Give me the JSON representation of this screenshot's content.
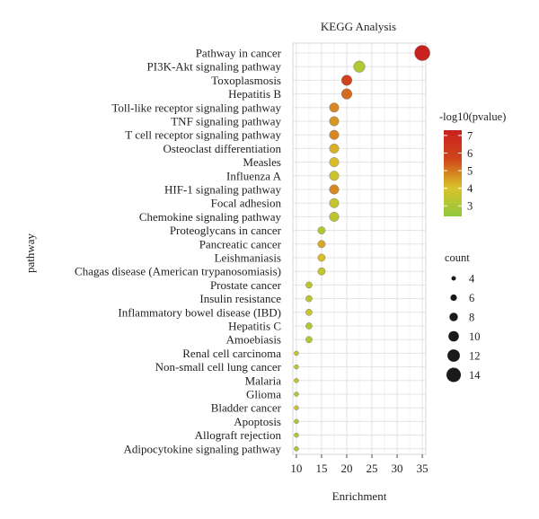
{
  "chart_data": {
    "type": "scatter",
    "title": "KEGG Analysis",
    "xlabel": "Enrichment",
    "ylabel": "pathway",
    "xlim": [
      9.3,
      35.7
    ],
    "xticks": [
      10,
      15,
      20,
      25,
      30,
      35
    ],
    "grid": true,
    "legend_position": "right",
    "color_legend": {
      "title": "-log10(pvalue)",
      "ticks": [
        3,
        4,
        5,
        6,
        7
      ],
      "range": [
        2.4,
        7.3
      ],
      "colors": [
        "#8fc83c",
        "#d9c32a",
        "#d0461b",
        "#c8201f"
      ]
    },
    "size_legend": {
      "title": "count",
      "values": [
        4,
        6,
        8,
        10,
        12,
        14
      ]
    },
    "points": [
      {
        "pathway": "Pathway in cancer",
        "enrichment": 35,
        "count": 15,
        "neglog10p": 7.2
      },
      {
        "pathway": "PI3K-Akt signaling pathway",
        "enrichment": 22.5,
        "count": 11,
        "neglog10p": 3.2
      },
      {
        "pathway": "Toxoplasmosis",
        "enrichment": 20,
        "count": 10,
        "neglog10p": 5.8
      },
      {
        "pathway": "Hepatitis B",
        "enrichment": 20,
        "count": 10,
        "neglog10p": 5.2
      },
      {
        "pathway": "Toll-like receptor signaling pathway",
        "enrichment": 17.5,
        "count": 9,
        "neglog10p": 4.8
      },
      {
        "pathway": "TNF signaling pathway",
        "enrichment": 17.5,
        "count": 9,
        "neglog10p": 4.6
      },
      {
        "pathway": "T cell receptor signaling pathway",
        "enrichment": 17.5,
        "count": 9,
        "neglog10p": 4.8
      },
      {
        "pathway": "Osteoclast differentiation",
        "enrichment": 17.5,
        "count": 9,
        "neglog10p": 4.3
      },
      {
        "pathway": "Measles",
        "enrichment": 17.5,
        "count": 9,
        "neglog10p": 4.1
      },
      {
        "pathway": "Influenza A",
        "enrichment": 17.5,
        "count": 9,
        "neglog10p": 3.7
      },
      {
        "pathway": "HIF-1 signaling pathway",
        "enrichment": 17.5,
        "count": 9,
        "neglog10p": 4.8
      },
      {
        "pathway": "Focal adhesion",
        "enrichment": 17.5,
        "count": 9,
        "neglog10p": 3.6
      },
      {
        "pathway": "Chemokine signaling pathway",
        "enrichment": 17.5,
        "count": 9,
        "neglog10p": 3.4
      },
      {
        "pathway": "Proteoglycans in cancer",
        "enrichment": 15,
        "count": 7,
        "neglog10p": 3.2
      },
      {
        "pathway": "Pancreatic cancer",
        "enrichment": 15,
        "count": 7,
        "neglog10p": 4.4
      },
      {
        "pathway": "Leishmaniasis",
        "enrichment": 15,
        "count": 7,
        "neglog10p": 4.1
      },
      {
        "pathway": "Chagas disease (American trypanosomiasis)",
        "enrichment": 15,
        "count": 7,
        "neglog10p": 3.5
      },
      {
        "pathway": "Prostate cancer",
        "enrichment": 12.5,
        "count": 6,
        "neglog10p": 3.4
      },
      {
        "pathway": "Insulin resistance",
        "enrichment": 12.5,
        "count": 6,
        "neglog10p": 3.4
      },
      {
        "pathway": "Inflammatory bowel disease (IBD)",
        "enrichment": 12.5,
        "count": 6,
        "neglog10p": 3.7
      },
      {
        "pathway": "Hepatitis C",
        "enrichment": 12.5,
        "count": 6,
        "neglog10p": 3.2
      },
      {
        "pathway": "Amoebiasis",
        "enrichment": 12.5,
        "count": 6,
        "neglog10p": 3.2
      },
      {
        "pathway": "Renal cell carcinoma",
        "enrichment": 10,
        "count": 4,
        "neglog10p": 3.6
      },
      {
        "pathway": "Non-small cell lung cancer",
        "enrichment": 10,
        "count": 4,
        "neglog10p": 3.5
      },
      {
        "pathway": "Malaria",
        "enrichment": 10,
        "count": 4,
        "neglog10p": 3.6
      },
      {
        "pathway": "Glioma",
        "enrichment": 10,
        "count": 4,
        "neglog10p": 3.3
      },
      {
        "pathway": "Bladder cancer",
        "enrichment": 10,
        "count": 4,
        "neglog10p": 3.7
      },
      {
        "pathway": "Apoptosis",
        "enrichment": 10,
        "count": 4,
        "neglog10p": 3.1
      },
      {
        "pathway": "Allograft rejection",
        "enrichment": 10,
        "count": 4,
        "neglog10p": 3.3
      },
      {
        "pathway": "Adipocytokine signaling pathway",
        "enrichment": 10,
        "count": 4,
        "neglog10p": 3.1
      }
    ]
  }
}
